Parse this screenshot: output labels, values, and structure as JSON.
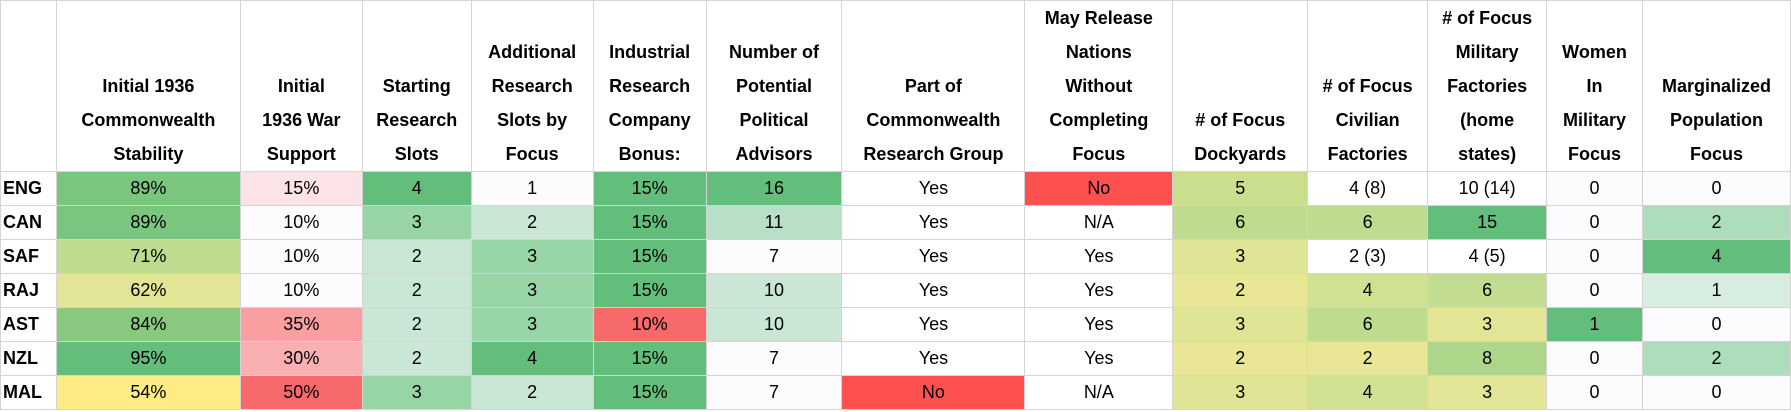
{
  "headers": [
    "",
    "Initial 1936\nCommonwealth\nStability",
    "Initial\n1936 War\nSupport",
    "Starting\nResearch\nSlots",
    "Additional\nResearch\nSlots by\nFocus",
    "Industrial\nResearch\nCompany\nBonus:",
    "Number of\nPotential\nPolitical\nAdvisors",
    "Part of\nCommonwealth\nResearch Group",
    "May Release\nNations\nWithout\nCompleting\nFocus",
    "# of Focus\nDockyards",
    "# of Focus\nCivilian\nFactories",
    "# of Focus\nMilitary\nFactories\n(home\nstates)",
    "Women\nIn\nMilitary\nFocus",
    "Marginalized\nPopulation\nFocus"
  ],
  "rows": [
    {
      "label": "ENG",
      "cells": [
        {
          "text": "89%",
          "bg": "#7bc67f"
        },
        {
          "text": "15%",
          "bg": "#fce4e6"
        },
        {
          "text": "4",
          "bg": "#63be7b"
        },
        {
          "text": "1",
          "bg": "#fcfcff"
        },
        {
          "text": "15%",
          "bg": "#63be7b"
        },
        {
          "text": "16",
          "bg": "#63be7b"
        },
        {
          "text": "Yes",
          "bg": "#ffffff"
        },
        {
          "text": "No",
          "bg": "#ff5050"
        },
        {
          "text": "5",
          "bg": "#c9df8e"
        },
        {
          "text": "4 (8)",
          "bg": "#ffffff"
        },
        {
          "text": "10 (14)",
          "bg": "#ffffff"
        },
        {
          "text": "0",
          "bg": "#fcfcff"
        },
        {
          "text": "0",
          "bg": "#fcfcff"
        }
      ]
    },
    {
      "label": "CAN",
      "cells": [
        {
          "text": "89%",
          "bg": "#7bc67f"
        },
        {
          "text": "10%",
          "bg": "#fcfcff"
        },
        {
          "text": "3",
          "bg": "#97d4a6"
        },
        {
          "text": "2",
          "bg": "#c9e7d4"
        },
        {
          "text": "15%",
          "bg": "#63be7b"
        },
        {
          "text": "11",
          "bg": "#b9e0c6"
        },
        {
          "text": "Yes",
          "bg": "#ffffff"
        },
        {
          "text": "N/A",
          "bg": "#ffffff"
        },
        {
          "text": "6",
          "bg": "#bedc8f"
        },
        {
          "text": "6",
          "bg": "#bedc8f"
        },
        {
          "text": "15",
          "bg": "#63be7b"
        },
        {
          "text": "0",
          "bg": "#fcfcff"
        },
        {
          "text": "2",
          "bg": "#aeddbc"
        }
      ]
    },
    {
      "label": "SAF",
      "cells": [
        {
          "text": "71%",
          "bg": "#bedc8f"
        },
        {
          "text": "10%",
          "bg": "#fcfcff"
        },
        {
          "text": "2",
          "bg": "#c9e7d4"
        },
        {
          "text": "3",
          "bg": "#97d4a6"
        },
        {
          "text": "15%",
          "bg": "#63be7b"
        },
        {
          "text": "7",
          "bg": "#fcfcff"
        },
        {
          "text": "Yes",
          "bg": "#ffffff"
        },
        {
          "text": "Yes",
          "bg": "#ffffff"
        },
        {
          "text": "3",
          "bg": "#dfe594"
        },
        {
          "text": "2 (3)",
          "bg": "#ffffff"
        },
        {
          "text": "4 (5)",
          "bg": "#ffffff"
        },
        {
          "text": "0",
          "bg": "#fcfcff"
        },
        {
          "text": "4",
          "bg": "#63be7b"
        }
      ]
    },
    {
      "label": "RAJ",
      "cells": [
        {
          "text": "62%",
          "bg": "#e1e595"
        },
        {
          "text": "10%",
          "bg": "#fcfcff"
        },
        {
          "text": "2",
          "bg": "#c9e7d4"
        },
        {
          "text": "3",
          "bg": "#97d4a6"
        },
        {
          "text": "15%",
          "bg": "#63be7b"
        },
        {
          "text": "10",
          "bg": "#c9e7d4"
        },
        {
          "text": "Yes",
          "bg": "#ffffff"
        },
        {
          "text": "Yes",
          "bg": "#ffffff"
        },
        {
          "text": "2",
          "bg": "#e9e795"
        },
        {
          "text": "4",
          "bg": "#d0e191"
        },
        {
          "text": "6",
          "bg": "#c2dd8f"
        },
        {
          "text": "0",
          "bg": "#fcfcff"
        },
        {
          "text": "1",
          "bg": "#d6eddf"
        }
      ]
    },
    {
      "label": "AST",
      "cells": [
        {
          "text": "84%",
          "bg": "#88c97f"
        },
        {
          "text": "35%",
          "bg": "#f99fa2"
        },
        {
          "text": "2",
          "bg": "#c9e7d4"
        },
        {
          "text": "3",
          "bg": "#97d4a6"
        },
        {
          "text": "10%",
          "bg": "#f8696b"
        },
        {
          "text": "10",
          "bg": "#c9e7d4"
        },
        {
          "text": "Yes",
          "bg": "#ffffff"
        },
        {
          "text": "Yes",
          "bg": "#ffffff"
        },
        {
          "text": "3",
          "bg": "#dfe594"
        },
        {
          "text": "6",
          "bg": "#bedc8f"
        },
        {
          "text": "3",
          "bg": "#e2e595"
        },
        {
          "text": "1",
          "bg": "#63be7b"
        },
        {
          "text": "0",
          "bg": "#fcfcff"
        }
      ]
    },
    {
      "label": "NZL",
      "cells": [
        {
          "text": "95%",
          "bg": "#63be7b"
        },
        {
          "text": "30%",
          "bg": "#fab0b3"
        },
        {
          "text": "2",
          "bg": "#c9e7d4"
        },
        {
          "text": "4",
          "bg": "#63be7b"
        },
        {
          "text": "15%",
          "bg": "#63be7b"
        },
        {
          "text": "7",
          "bg": "#fcfcff"
        },
        {
          "text": "Yes",
          "bg": "#ffffff"
        },
        {
          "text": "Yes",
          "bg": "#ffffff"
        },
        {
          "text": "2",
          "bg": "#e9e795"
        },
        {
          "text": "2",
          "bg": "#e9e795"
        },
        {
          "text": "8",
          "bg": "#aed68a"
        },
        {
          "text": "0",
          "bg": "#fcfcff"
        },
        {
          "text": "2",
          "bg": "#aeddbc"
        }
      ]
    },
    {
      "label": "MAL",
      "cells": [
        {
          "text": "54%",
          "bg": "#ffeb84"
        },
        {
          "text": "50%",
          "bg": "#f8696b"
        },
        {
          "text": "3",
          "bg": "#97d4a6"
        },
        {
          "text": "2",
          "bg": "#c9e7d4"
        },
        {
          "text": "15%",
          "bg": "#63be7b"
        },
        {
          "text": "7",
          "bg": "#fcfcff"
        },
        {
          "text": "No",
          "bg": "#ff5050"
        },
        {
          "text": "N/A",
          "bg": "#ffffff"
        },
        {
          "text": "3",
          "bg": "#dfe594"
        },
        {
          "text": "4",
          "bg": "#d0e191"
        },
        {
          "text": "3",
          "bg": "#e2e595"
        },
        {
          "text": "0",
          "bg": "#fcfcff"
        },
        {
          "text": "0",
          "bg": "#fcfcff"
        }
      ]
    }
  ]
}
